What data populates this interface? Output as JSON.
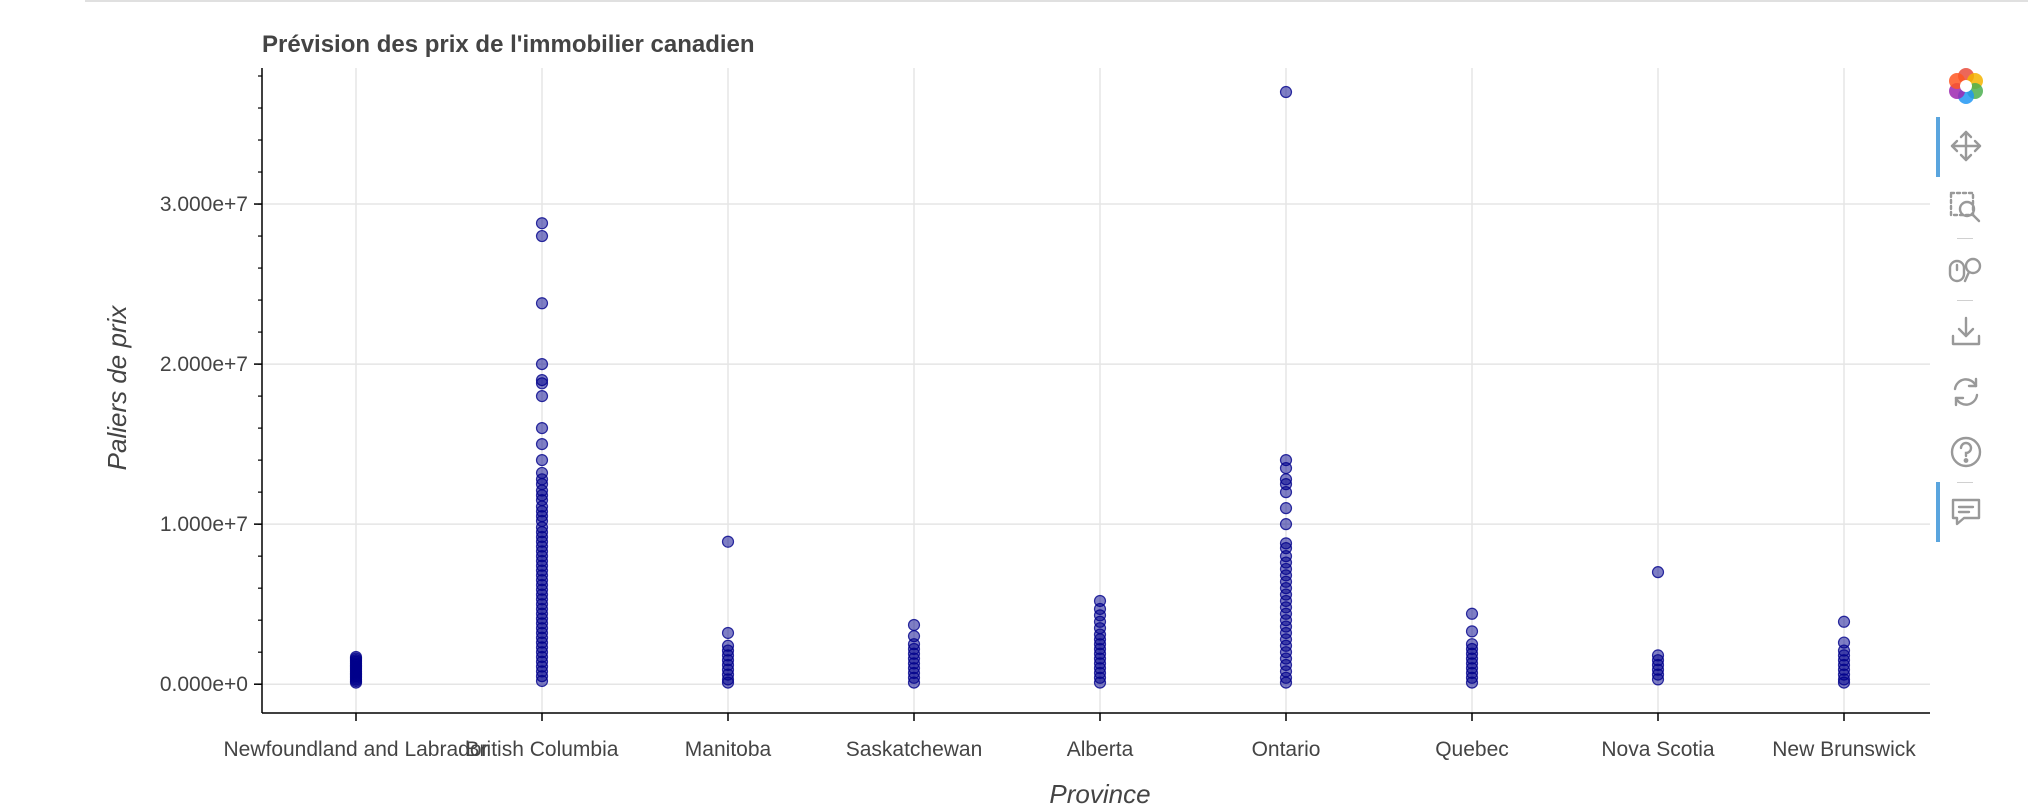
{
  "chart_data": {
    "type": "scatter",
    "title": "Prévision des prix de l'immobilier canadien",
    "xlabel": "Province",
    "ylabel": "Paliers de prix",
    "categories": [
      "Newfoundland and Labrador",
      "British Columbia",
      "Manitoba",
      "Saskatchewan",
      "Alberta",
      "Ontario",
      "Quebec",
      "Nova Scotia",
      "New Brunswick"
    ],
    "y_ticks": [
      0,
      10000000,
      20000000,
      30000000
    ],
    "y_tick_labels": [
      "0.000e+0",
      "1.000e+7",
      "2.000e+7",
      "3.000e+7"
    ],
    "ylim": [
      -1800000,
      38500000
    ],
    "grid": true,
    "marker_color": "#00008b",
    "points": {
      "Newfoundland and Labrador": [
        1700000,
        1600000,
        1500000,
        1400000,
        1300000,
        1200000,
        1100000,
        1000000,
        900000,
        800000,
        700000,
        600000,
        500000,
        400000,
        300000,
        200000,
        100000
      ],
      "British Columbia": [
        28800000,
        28000000,
        23800000,
        20000000,
        19000000,
        18800000,
        18000000,
        16000000,
        15000000,
        14000000,
        13200000,
        12800000,
        12500000,
        12100000,
        11800000,
        11500000,
        11100000,
        10800000,
        10500000,
        10200000,
        9800000,
        9500000,
        9200000,
        8900000,
        8600000,
        8300000,
        8000000,
        7700000,
        7400000,
        7100000,
        6800000,
        6500000,
        6200000,
        5900000,
        5600000,
        5300000,
        5000000,
        4700000,
        4400000,
        4100000,
        3800000,
        3500000,
        3200000,
        2900000,
        2600000,
        2300000,
        2000000,
        1700000,
        1400000,
        1100000,
        800000,
        500000,
        200000
      ],
      "Manitoba": [
        8900000,
        3200000,
        2400000,
        2100000,
        1800000,
        1500000,
        1200000,
        900000,
        600000,
        300000,
        100000
      ],
      "Saskatchewan": [
        3700000,
        3000000,
        2500000,
        2200000,
        1900000,
        1600000,
        1300000,
        1000000,
        700000,
        400000,
        100000
      ],
      "Alberta": [
        5200000,
        4700000,
        4300000,
        3900000,
        3500000,
        3100000,
        2800000,
        2500000,
        2200000,
        1900000,
        1600000,
        1300000,
        1000000,
        700000,
        400000,
        100000
      ],
      "Ontario": [
        37000000,
        14000000,
        13500000,
        12800000,
        12500000,
        12000000,
        11000000,
        10000000,
        8800000,
        8500000,
        8000000,
        7600000,
        7200000,
        6800000,
        6400000,
        6000000,
        5600000,
        5200000,
        4800000,
        4400000,
        4000000,
        3600000,
        3200000,
        2800000,
        2400000,
        2000000,
        1600000,
        1200000,
        800000,
        400000,
        100000
      ],
      "Quebec": [
        4400000,
        3300000,
        2500000,
        2200000,
        1900000,
        1600000,
        1300000,
        1000000,
        700000,
        400000,
        100000
      ],
      "Nova Scotia": [
        7000000,
        1800000,
        1500000,
        1200000,
        900000,
        600000,
        300000
      ],
      "New Brunswick": [
        3900000,
        2600000,
        2100000,
        1800000,
        1500000,
        1200000,
        900000,
        600000,
        300000,
        100000
      ]
    }
  },
  "toolbar": {
    "tools": [
      {
        "icon": "bokeh-logo-icon",
        "active": false
      },
      {
        "icon": "pan-icon",
        "active": true
      },
      {
        "icon": "box-zoom-icon",
        "active": false
      },
      {
        "icon": "wheel-zoom-icon",
        "active": false
      },
      {
        "icon": "save-icon",
        "active": false
      },
      {
        "icon": "reset-icon",
        "active": false
      },
      {
        "icon": "help-icon",
        "active": false
      },
      {
        "icon": "hover-icon",
        "active": true
      }
    ]
  }
}
